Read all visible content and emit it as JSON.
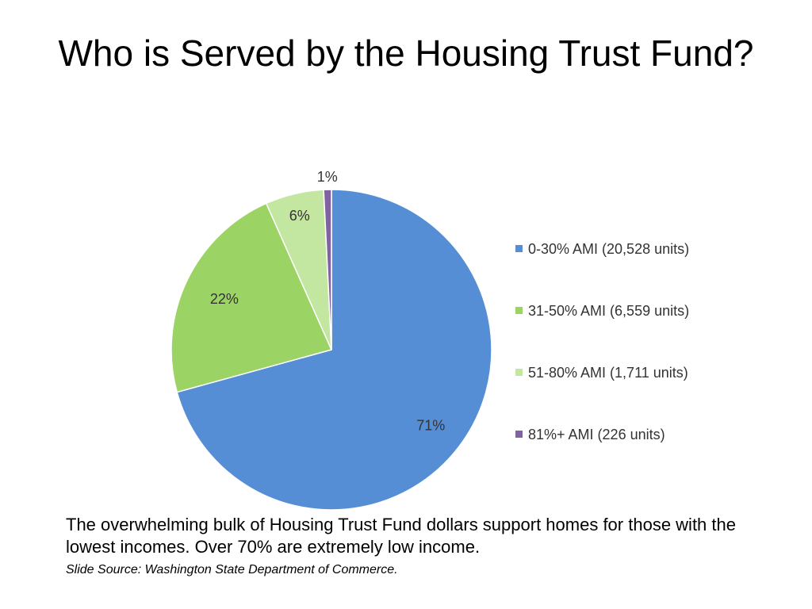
{
  "slide": {
    "title": "Who is Served by the Housing Trust Fund?",
    "caption": "The overwhelming bulk of Housing Trust Fund dollars support homes for those with the lowest incomes. Over 70% are extremely low income.",
    "source": "Slide Source: Washington State Department of Commerce."
  },
  "chart_data": {
    "type": "pie",
    "categories": [
      "0-30% AMI (20,528 units)",
      "31-50% AMI (6,559 units)",
      "51-80% AMI (1,711 units)",
      "81%+ AMI (226 units)"
    ],
    "values": [
      20528,
      6559,
      1711,
      226
    ],
    "labels": [
      "71%",
      "22%",
      "6%",
      "1%"
    ],
    "colors": [
      "#558ed5",
      "#9bd464",
      "#c3e6a0",
      "#8064a2"
    ],
    "start_angle_deg": 0,
    "direction": "clockwise",
    "legend_position": "right"
  }
}
